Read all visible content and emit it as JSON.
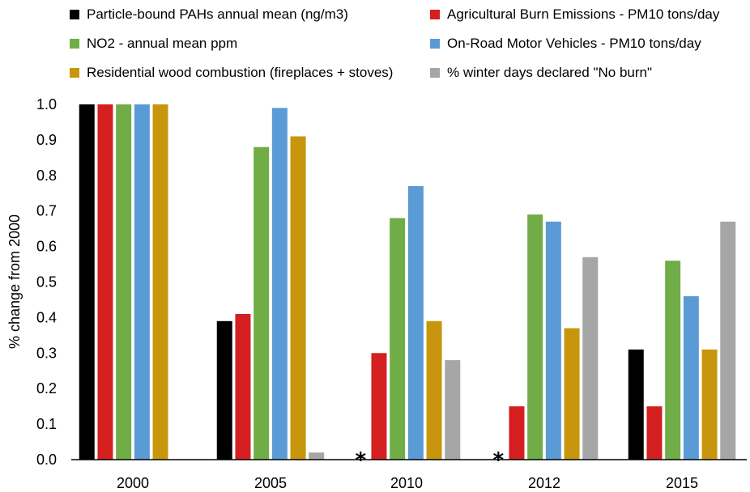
{
  "chart_data": {
    "type": "bar",
    "categories": [
      "2000",
      "2005",
      "2010",
      "2012",
      "2015"
    ],
    "ylabel": "% change from  2000",
    "ylim": [
      0.0,
      1.0
    ],
    "yticks": [
      "0.0",
      "0.1",
      "0.2",
      "0.3",
      "0.4",
      "0.5",
      "0.6",
      "0.7",
      "0.8",
      "0.9",
      "1.0"
    ],
    "grid": false,
    "legend_placement": "top",
    "series": [
      {
        "name": "Particle-bound PAHs annual mean (ng/m3)",
        "color": "#000000",
        "values": [
          1.0,
          0.39,
          null,
          null,
          0.31
        ]
      },
      {
        "name": "Agricultural Burn Emissions - PM10 tons/day",
        "color": "#d42020",
        "values": [
          1.0,
          0.41,
          0.3,
          0.15,
          0.15
        ]
      },
      {
        "name": "NO2 - annual mean ppm",
        "color": "#70ad47",
        "values": [
          1.0,
          0.88,
          0.68,
          0.69,
          0.56
        ]
      },
      {
        "name": "On-Road Motor Vehicles  - PM10 tons/day",
        "color": "#5b9bd5",
        "values": [
          1.0,
          0.99,
          0.77,
          0.67,
          0.46
        ]
      },
      {
        "name": "Residential wood combustion (fireplaces + stoves)",
        "color": "#c8960c",
        "values": [
          1.0,
          0.91,
          0.39,
          0.37,
          0.31
        ]
      },
      {
        "name": "% winter days declared \"No burn\"",
        "color": "#a6a6a6",
        "values": [
          null,
          0.02,
          0.28,
          0.57,
          0.67
        ]
      }
    ],
    "annotations": [
      {
        "text": "*",
        "category": "2010",
        "series": "Particle-bound PAHs annual mean (ng/m3)"
      },
      {
        "text": "*",
        "category": "2012",
        "series": "Particle-bound PAHs annual mean (ng/m3)"
      }
    ]
  }
}
